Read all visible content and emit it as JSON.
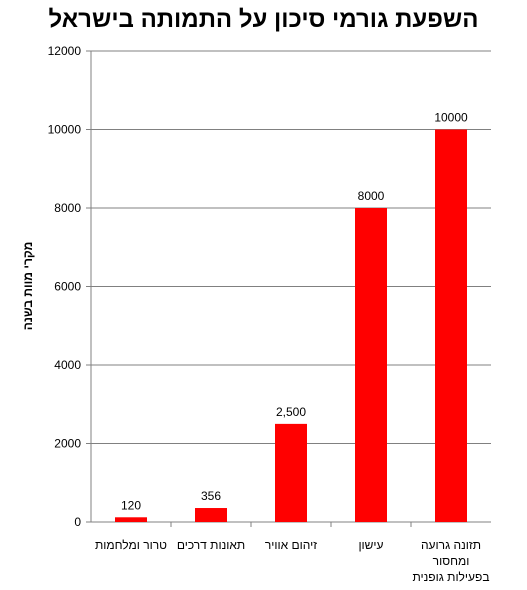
{
  "chart_data": {
    "type": "bar",
    "title": "השפעת גורמי סיכון על התמותה בישראל",
    "xlabel": "",
    "ylabel": "מקרי מוות בשנה",
    "ylim": [
      0,
      12000
    ],
    "yticks": [
      0,
      2000,
      4000,
      6000,
      8000,
      10000,
      12000
    ],
    "grid": true,
    "legend": "none",
    "bar_color": "#ff0000",
    "categories": [
      [
        "טרור ומלחמות"
      ],
      [
        "תאונות דרכים"
      ],
      [
        "זיהום אוויר"
      ],
      [
        "עישון"
      ],
      [
        "תזונה גרועה",
        "ומחסור",
        "בפעילות גופנית"
      ]
    ],
    "values": [
      120,
      356,
      2500,
      8000,
      10000
    ],
    "data_labels": [
      "120",
      "356",
      "2,500",
      "8000",
      "10000"
    ]
  }
}
